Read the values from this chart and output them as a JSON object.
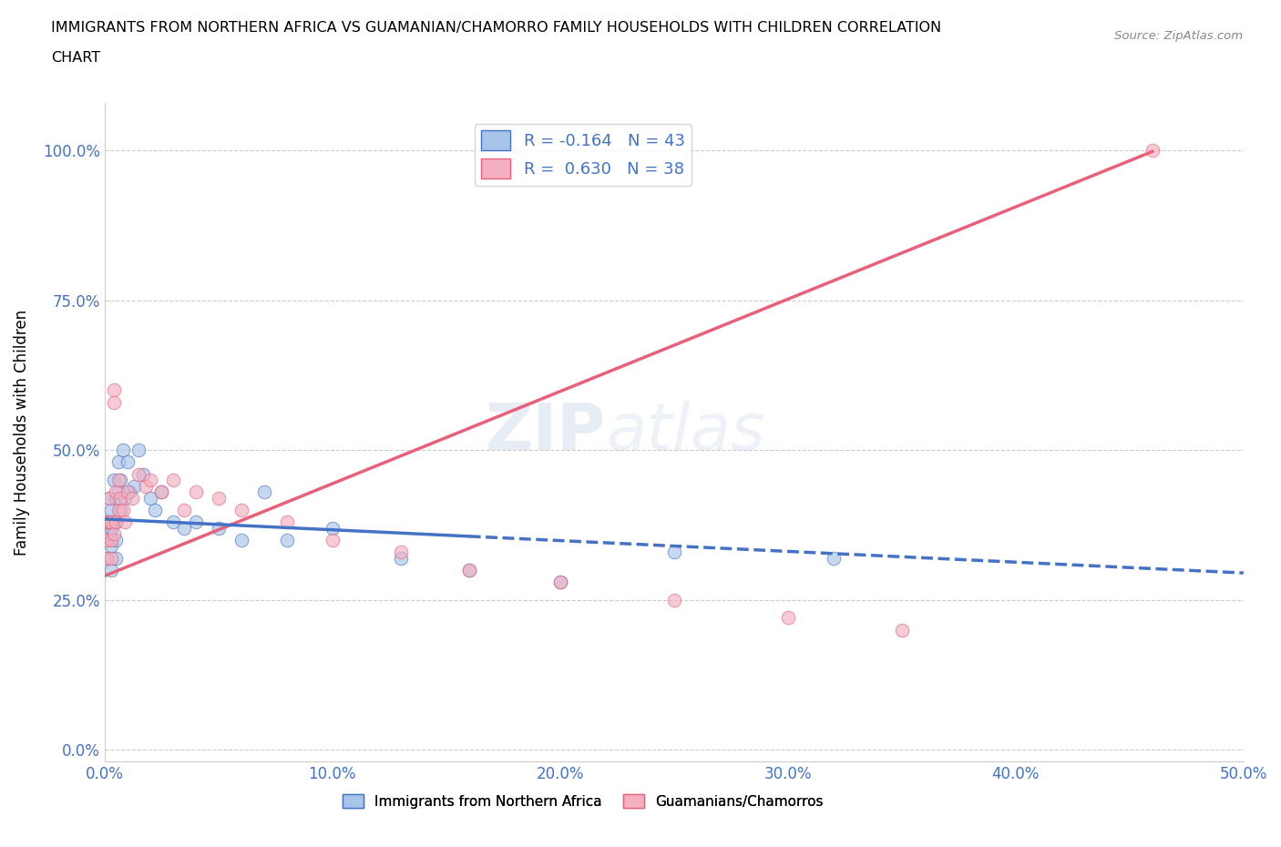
{
  "title_line1": "IMMIGRANTS FROM NORTHERN AFRICA VS GUAMANIAN/CHAMORRO FAMILY HOUSEHOLDS WITH CHILDREN CORRELATION",
  "title_line2": "CHART",
  "source": "Source: ZipAtlas.com",
  "ylabel": "Family Households with Children",
  "legend_label_blue": "Immigrants from Northern Africa",
  "legend_label_pink": "Guamanians/Chamorros",
  "R_blue": -0.164,
  "N_blue": 43,
  "R_pink": 0.63,
  "N_pink": 38,
  "blue_color": "#a8c4e8",
  "pink_color": "#f4afc0",
  "blue_line_color": "#4472c4",
  "pink_line_color": "#e8607a",
  "xlim": [
    0.0,
    0.5
  ],
  "ylim": [
    -0.02,
    1.08
  ],
  "yticks": [
    0.0,
    0.25,
    0.5,
    0.75,
    1.0
  ],
  "ytick_labels": [
    "0.0%",
    "25.0%",
    "50.0%",
    "75.0%",
    "100.0%"
  ],
  "xticks": [
    0.0,
    0.1,
    0.2,
    0.3,
    0.4,
    0.5
  ],
  "xtick_labels": [
    "0.0%",
    "10.0%",
    "20.0%",
    "30.0%",
    "40.0%",
    "50.0%"
  ],
  "blue_x": [
    0.001,
    0.001,
    0.001,
    0.002,
    0.002,
    0.002,
    0.003,
    0.003,
    0.003,
    0.003,
    0.004,
    0.004,
    0.005,
    0.005,
    0.005,
    0.005,
    0.006,
    0.006,
    0.007,
    0.007,
    0.008,
    0.009,
    0.01,
    0.011,
    0.013,
    0.015,
    0.017,
    0.02,
    0.022,
    0.025,
    0.03,
    0.035,
    0.04,
    0.05,
    0.06,
    0.07,
    0.08,
    0.1,
    0.13,
    0.16,
    0.2,
    0.25,
    0.32
  ],
  "blue_y": [
    0.38,
    0.35,
    0.32,
    0.42,
    0.38,
    0.36,
    0.4,
    0.37,
    0.34,
    0.3,
    0.45,
    0.38,
    0.42,
    0.38,
    0.35,
    0.32,
    0.48,
    0.43,
    0.45,
    0.4,
    0.5,
    0.42,
    0.48,
    0.43,
    0.44,
    0.5,
    0.46,
    0.42,
    0.4,
    0.43,
    0.38,
    0.37,
    0.38,
    0.37,
    0.35,
    0.43,
    0.35,
    0.37,
    0.32,
    0.3,
    0.28,
    0.33,
    0.32
  ],
  "pink_x": [
    0.001,
    0.001,
    0.001,
    0.002,
    0.002,
    0.003,
    0.003,
    0.003,
    0.004,
    0.004,
    0.004,
    0.005,
    0.005,
    0.006,
    0.006,
    0.007,
    0.008,
    0.009,
    0.01,
    0.012,
    0.015,
    0.018,
    0.02,
    0.025,
    0.03,
    0.035,
    0.04,
    0.05,
    0.06,
    0.08,
    0.1,
    0.13,
    0.16,
    0.2,
    0.25,
    0.3,
    0.35,
    0.46
  ],
  "pink_y": [
    0.38,
    0.35,
    0.32,
    0.42,
    0.38,
    0.38,
    0.35,
    0.32,
    0.6,
    0.58,
    0.36,
    0.43,
    0.38,
    0.45,
    0.4,
    0.42,
    0.4,
    0.38,
    0.43,
    0.42,
    0.46,
    0.44,
    0.45,
    0.43,
    0.45,
    0.4,
    0.43,
    0.42,
    0.4,
    0.38,
    0.35,
    0.33,
    0.3,
    0.28,
    0.25,
    0.22,
    0.2,
    1.0
  ],
  "pink_line_intercept": 0.29,
  "pink_line_slope": 1.54,
  "blue_line_intercept": 0.385,
  "blue_line_slope": -0.18
}
